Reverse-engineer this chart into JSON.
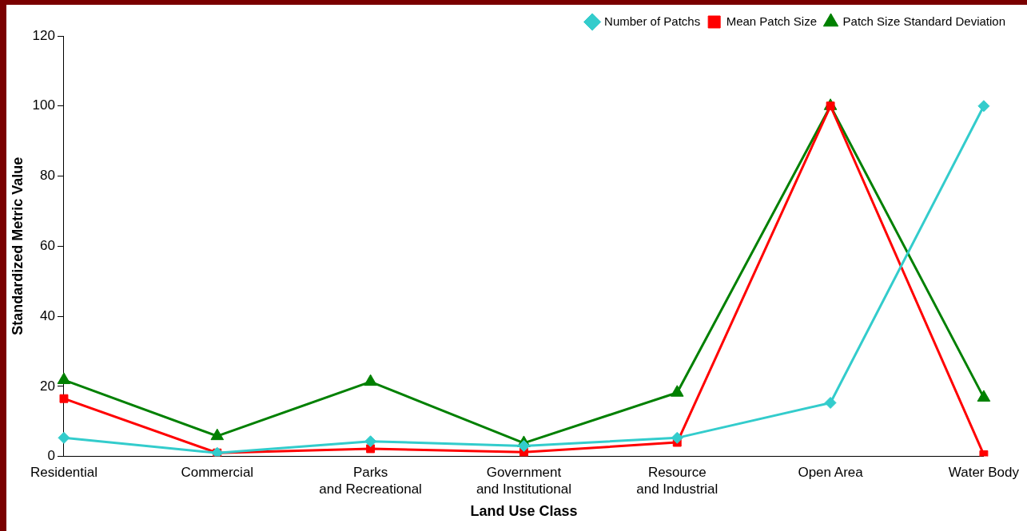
{
  "chart_data": {
    "type": "line",
    "xlabel": "Land Use Class",
    "ylabel": "Standardized Metric Value",
    "categories": [
      "Residential",
      "Commercial",
      "Parks and Recreational",
      "Government and Institutional",
      "Resource and Industrial",
      "Open Area",
      "Water Body"
    ],
    "series": [
      {
        "name": "Number of Patchs",
        "color": "#33cccc",
        "marker": "diamond",
        "values": [
          5.3,
          1,
          4.3,
          3,
          5.3,
          15.3,
          100
        ]
      },
      {
        "name": "Mean Patch Size",
        "color": "#ff0000",
        "marker": "square",
        "values": [
          16.5,
          1,
          2.2,
          1.2,
          4,
          100,
          0.5
        ]
      },
      {
        "name": "Patch Size Standard Deviation",
        "color": "#008000",
        "marker": "triangle",
        "values": [
          21.8,
          5.8,
          21.3,
          3.8,
          18.2,
          100,
          16.8
        ]
      }
    ],
    "ylim": [
      0,
      120
    ],
    "yticks": [
      0,
      20,
      40,
      60,
      80,
      100,
      120
    ],
    "grid": false,
    "legend": "top right",
    "line_style": "solid"
  }
}
